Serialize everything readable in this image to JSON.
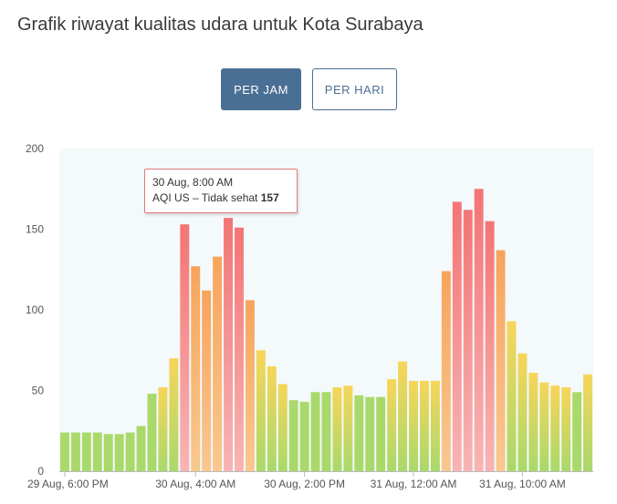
{
  "header": {
    "title": "Grafik riwayat kualitas udara untuk Kota Surabaya"
  },
  "toggles": {
    "hourly": "PER JAM",
    "daily": "PER HARI"
  },
  "tooltip": {
    "time": "30 Aug, 8:00 AM",
    "label": "AQI US – Tidak sehat",
    "value": "157"
  },
  "colors": {
    "good": "#a9d96b",
    "moderate": "#f7d55a",
    "sensitive": "#f7a45c",
    "unhealthy": "#f47474",
    "plot_bg": "#f4f9fb",
    "active_button": "#4a6f94"
  },
  "chart_data": {
    "type": "bar",
    "ylim": [
      0,
      200
    ],
    "yticks": [
      0,
      50,
      100,
      150,
      200
    ],
    "xtick_labels": [
      {
        "index": 0,
        "label": "29 Aug, 6:00 PM"
      },
      {
        "index": 12,
        "label": "30 Aug, 4:00 AM"
      },
      {
        "index": 22,
        "label": "30 Aug, 2:00 PM"
      },
      {
        "index": 32,
        "label": "31 Aug, 12:00 AM"
      },
      {
        "index": 42,
        "label": "31 Aug, 10:00 AM"
      }
    ],
    "values": [
      24,
      24,
      24,
      24,
      23,
      23,
      24,
      28,
      48,
      52,
      70,
      153,
      127,
      112,
      133,
      157,
      151,
      106,
      75,
      65,
      54,
      44,
      43,
      49,
      49,
      52,
      53,
      47,
      46,
      46,
      57,
      68,
      56,
      56,
      56,
      124,
      167,
      162,
      175,
      155,
      137,
      93,
      73,
      61,
      55,
      53,
      52,
      49,
      60
    ],
    "highlight_index": 15
  }
}
